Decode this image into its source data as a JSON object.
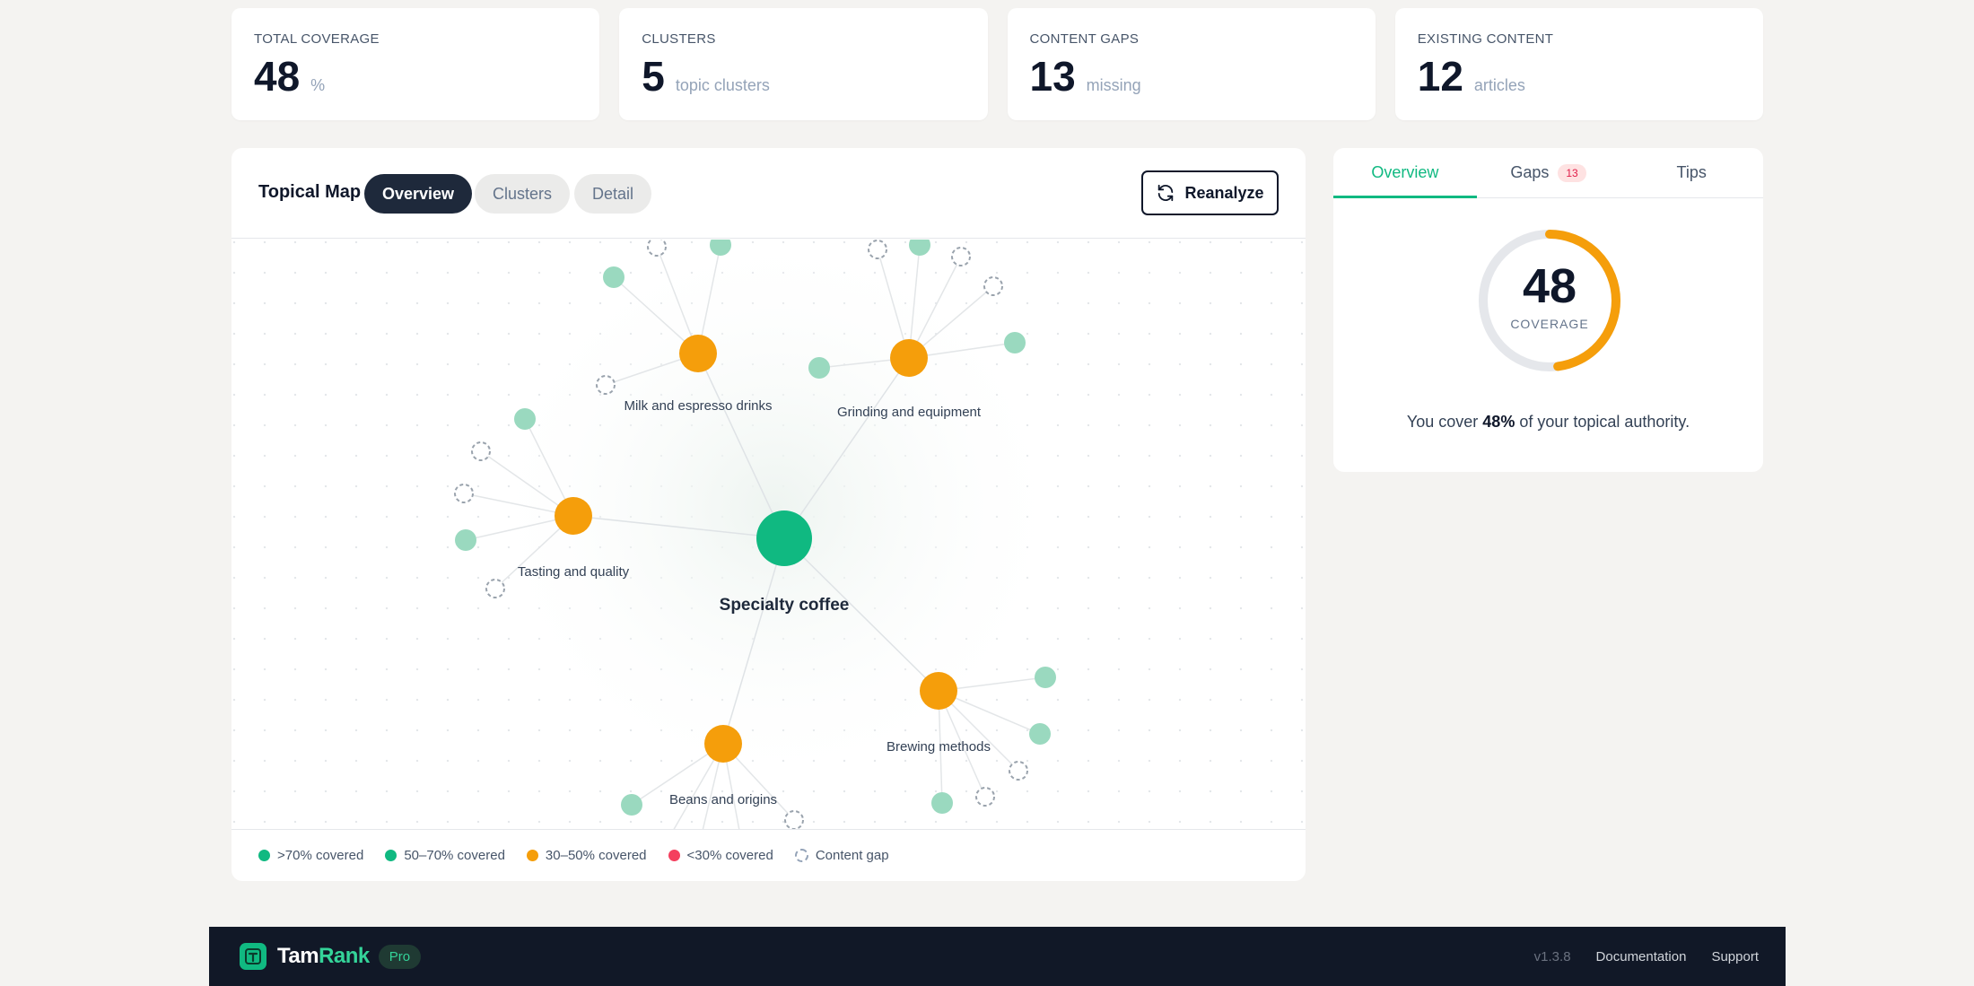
{
  "stats": [
    {
      "label": "TOTAL COVERAGE",
      "value": "48",
      "unit": "%"
    },
    {
      "label": "CLUSTERS",
      "value": "5",
      "unit": "topic clusters"
    },
    {
      "label": "CONTENT GAPS",
      "value": "13",
      "unit": "missing"
    },
    {
      "label": "EXISTING CONTENT",
      "value": "12",
      "unit": "articles"
    }
  ],
  "map": {
    "title": "Topical Map",
    "views": [
      "Overview",
      "Clusters",
      "Detail"
    ],
    "active_view": "Overview",
    "reanalyze_label": "Reanalyze",
    "center_topic": "Specialty coffee",
    "clusters": [
      "Milk and espresso drinks",
      "Grinding and equipment",
      "Tasting and quality",
      "Brewing methods",
      "Beans and origins"
    ]
  },
  "legend": {
    "high": ">70% covered",
    "mid_high": "50–70% covered",
    "mid_low": "30–50% covered",
    "low": "<30% covered",
    "gap": "Content gap"
  },
  "colors": {
    "green": "#10b981",
    "green_light": "#9ad9bf",
    "orange": "#f59e0b",
    "red": "#f43f5e",
    "gap_stroke": "#94a3b8"
  },
  "panel": {
    "tabs": [
      {
        "label": "Overview"
      },
      {
        "label": "Gaps",
        "badge": "13"
      },
      {
        "label": "Tips"
      }
    ],
    "gauge_value": "48",
    "gauge_fraction": 0.48,
    "gauge_caption": "COVERAGE",
    "cover_prefix": "You cover ",
    "cover_percent": "48%",
    "cover_suffix": " of your topical authority."
  },
  "footer": {
    "brand_main": "Tam",
    "brand_accent": "Rank",
    "badge": "Pro",
    "version": "v1.3.8",
    "links": [
      "Documentation",
      "Support"
    ]
  }
}
